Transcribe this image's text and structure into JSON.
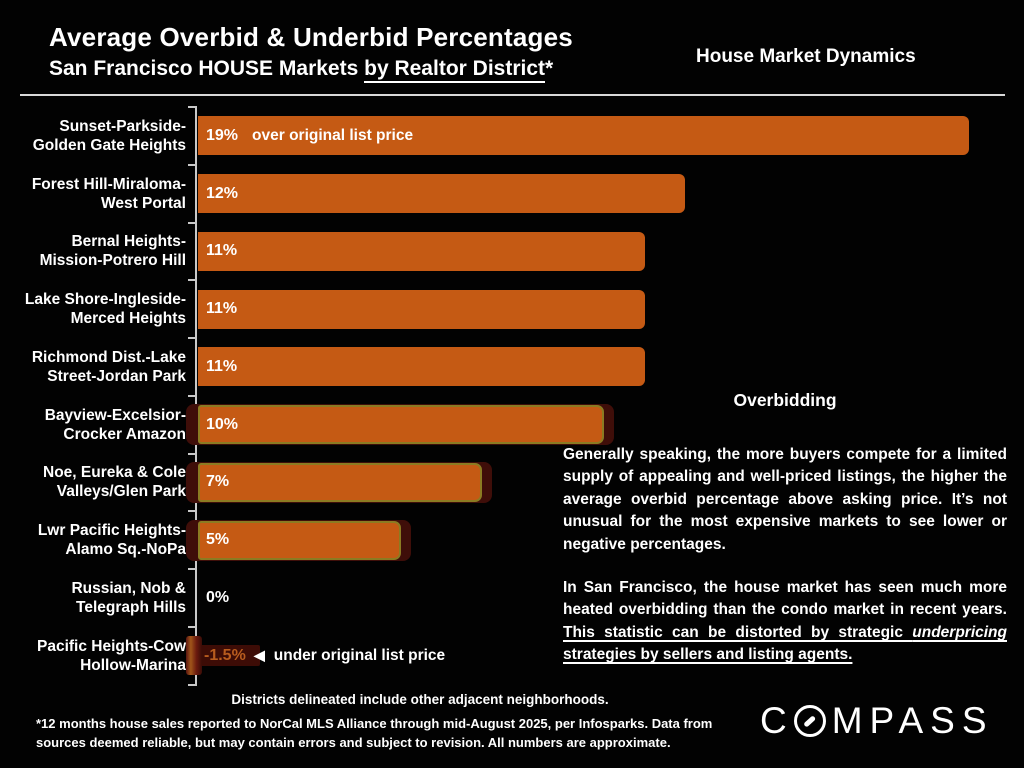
{
  "header": {
    "title": "Average Overbid & Underbid Percentages",
    "subtitle_prefix": "San Francisco HOUSE Markets ",
    "subtitle_underlined": "by Realtor District",
    "subtitle_suffix": "*",
    "tagline": "House Market Dynamics"
  },
  "chart_data": {
    "type": "bar",
    "orientation": "horizontal",
    "title": "Average Overbid & Underbid Percentages — San Francisco HOUSE Markets by Realtor District",
    "unit": "percent over/under original list price",
    "categories": [
      "Sunset-Parkside-Golden Gate Heights",
      "Forest Hill-Miraloma-West Portal",
      "Bernal Heights-Mission-Potrero Hill",
      "Lake Shore-Ingleside-Merced Heights",
      "Richmond Dist.-Lake Street-Jordan Park",
      "Bayview-Excelsior-Crocker Amazon",
      "Noe, Eureka & Cole Valleys/Glen Park",
      "Lwr Pacific Heights-Alamo Sq.-NoPa",
      "Russian, Nob & Telegraph Hills",
      "Pacific Heights-Cow Hollow-Marina"
    ],
    "label_lines": [
      [
        "Sunset-Parkside-",
        "Golden Gate Heights"
      ],
      [
        "Forest Hill-Miraloma-",
        "West Portal"
      ],
      [
        "Bernal Heights-",
        "Mission-Potrero Hill"
      ],
      [
        "Lake Shore-Ingleside-",
        "Merced Heights"
      ],
      [
        "Richmond Dist.-Lake",
        "Street-Jordan Park"
      ],
      [
        "Bayview-Excelsior-",
        "Crocker Amazon"
      ],
      [
        "Noe, Eureka & Cole",
        "Valleys/Glen Park"
      ],
      [
        "Lwr Pacific Heights-",
        "Alamo Sq.-NoPa"
      ],
      [
        "Russian, Nob &",
        "Telegraph Hills"
      ],
      [
        "Pacific Heights-Cow",
        "Hollow-Marina"
      ]
    ],
    "values": [
      19,
      12,
      11,
      11,
      11,
      10,
      7,
      5,
      0,
      -1.5
    ],
    "value_labels": [
      "19%",
      "12%",
      "11%",
      "11%",
      "11%",
      "10%",
      "7%",
      "5%",
      "0%",
      "-1.5%"
    ],
    "positive_annotation": "over original list price",
    "negative_annotation": "under original list price",
    "left_arrow_glyph": "◀",
    "highlighted_rows": [
      5,
      6,
      7
    ],
    "xlim": [
      -2,
      20
    ],
    "grid": false,
    "legend": false,
    "colors": {
      "bar": "#c55a14",
      "highlight_border": "#8b7b22",
      "backing_shadow": "#3f0e09",
      "negative_bar": "#6b1a0e",
      "negative_label": "#b85c1e",
      "axis": "#c9c9c9",
      "background": "#020202",
      "text": "#ffffff"
    }
  },
  "commentary": {
    "heading": "Overbidding",
    "para1": "Generally speaking, the more buyers compete for a limited supply of appealing and well-priced listings, the higher the average overbid percentage above asking price. It’s not unusual for the most expensive markets to see lower or negative percentages.",
    "para2_prefix": "In San Francisco, the house market has seen much more heated overbidding than the condo market in recent years. ",
    "para2_underline_1": "This statistic can be distorted by strategic ",
    "para2_italic": "underpricing",
    "para2_underline_2": " strategies by sellers and listing agents."
  },
  "footnotes": {
    "districts": "Districts delineated include other adjacent neighborhoods.",
    "source_line1": "*12 months house sales reported to NorCal MLS Alliance through mid-August 2025, per Infosparks. Data from",
    "source_line2": "sources deemed reliable, but may contain errors and subject to revision. All numbers are approximate."
  },
  "logo": {
    "part1": "C",
    "part2": "MPASS"
  }
}
